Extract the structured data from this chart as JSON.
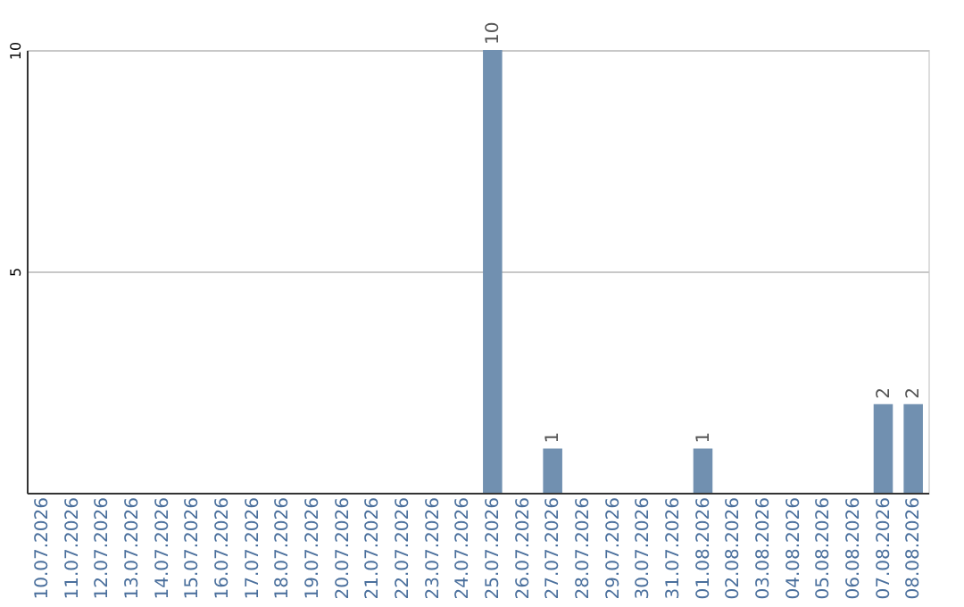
{
  "chart_data": {
    "type": "bar",
    "categories": [
      "10.07.2026",
      "11.07.2026",
      "12.07.2026",
      "13.07.2026",
      "14.07.2026",
      "15.07.2026",
      "16.07.2026",
      "17.07.2026",
      "18.07.2026",
      "19.07.2026",
      "20.07.2026",
      "21.07.2026",
      "22.07.2026",
      "23.07.2026",
      "24.07.2026",
      "25.07.2026",
      "26.07.2026",
      "27.07.2026",
      "28.07.2026",
      "29.07.2026",
      "30.07.2026",
      "31.07.2026",
      "01.08.2026",
      "02.08.2026",
      "03.08.2026",
      "04.08.2026",
      "05.08.2026",
      "06.08.2026",
      "07.08.2026",
      "08.08.2026"
    ],
    "values": [
      0,
      0,
      0,
      0,
      0,
      0,
      0,
      0,
      0,
      0,
      0,
      0,
      0,
      0,
      0,
      10,
      0,
      1,
      0,
      0,
      0,
      0,
      1,
      0,
      0,
      0,
      0,
      0,
      2,
      2
    ],
    "value_labels": [
      null,
      null,
      null,
      null,
      null,
      null,
      null,
      null,
      null,
      null,
      null,
      null,
      null,
      null,
      null,
      "10",
      null,
      "1",
      null,
      null,
      null,
      null,
      "1",
      null,
      null,
      null,
      null,
      null,
      "2",
      "2"
    ],
    "color": "#7190b0",
    "ylim": [
      0,
      10
    ],
    "yticks": [
      5,
      10
    ],
    "grid": "y"
  }
}
